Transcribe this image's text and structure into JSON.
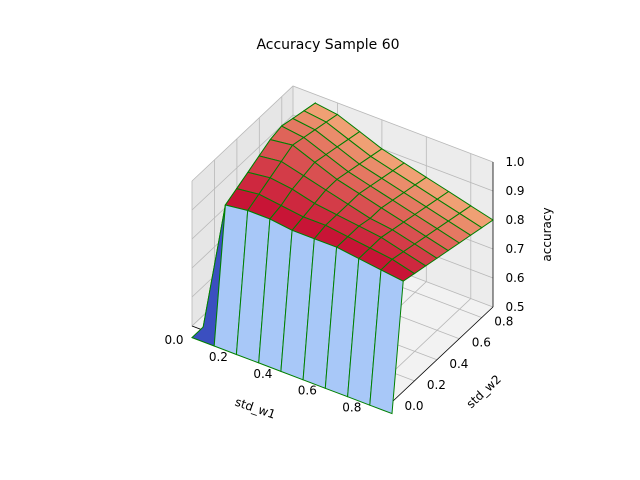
{
  "chart_data": {
    "type": "surface",
    "title": "Accuracy Sample 60",
    "xlabel": "std_w1",
    "ylabel": "std_w2",
    "zlabel": "accuracy",
    "x_ticks": [
      "0.0",
      "0.2",
      "0.4",
      "0.6",
      "0.8"
    ],
    "y_ticks": [
      "0.0",
      "0.2",
      "0.4",
      "0.6",
      "0.8"
    ],
    "z_ticks": [
      "0.5",
      "0.6",
      "0.7",
      "0.8",
      "0.9",
      "1.0"
    ],
    "xlim": [
      0.0,
      0.9
    ],
    "ylim": [
      0.0,
      0.9
    ],
    "zlim": [
      0.5,
      1.0
    ],
    "grid": true,
    "x": [
      0.0,
      0.1,
      0.2,
      0.3,
      0.4,
      0.5,
      0.6,
      0.7,
      0.8,
      0.9
    ],
    "y": [
      0.0,
      0.1,
      0.2,
      0.3,
      0.4,
      0.5,
      0.6,
      0.7,
      0.8,
      0.9
    ],
    "z_by_y_rows": [
      [
        0.1,
        0.1,
        0.1,
        0.1,
        0.1,
        0.1,
        0.1,
        0.1,
        0.1,
        0.1
      ],
      [
        0.1,
        0.91,
        0.92,
        0.92,
        0.91,
        0.91,
        0.91,
        0.9,
        0.89,
        0.88
      ],
      [
        0.1,
        0.93,
        0.94,
        0.93,
        0.92,
        0.92,
        0.91,
        0.9,
        0.89,
        0.87
      ],
      [
        0.1,
        0.95,
        0.96,
        0.95,
        0.93,
        0.92,
        0.91,
        0.9,
        0.88,
        0.86
      ],
      [
        0.1,
        0.97,
        0.98,
        0.96,
        0.94,
        0.92,
        0.9,
        0.89,
        0.87,
        0.85
      ],
      [
        0.1,
        0.99,
        1.0,
        0.97,
        0.94,
        0.92,
        0.9,
        0.88,
        0.86,
        0.84
      ],
      [
        0.1,
        1.0,
        0.99,
        0.96,
        0.93,
        0.91,
        0.89,
        0.87,
        0.85,
        0.83
      ],
      [
        0.1,
        0.99,
        0.98,
        0.95,
        0.92,
        0.9,
        0.88,
        0.86,
        0.84,
        0.82
      ],
      [
        0.1,
        0.98,
        0.97,
        0.94,
        0.91,
        0.89,
        0.87,
        0.85,
        0.83,
        0.81
      ],
      [
        0.1,
        0.97,
        0.96,
        0.93,
        0.9,
        0.88,
        0.86,
        0.84,
        0.82,
        0.8
      ]
    ],
    "colors": {
      "wall_front": "#a8c8f8",
      "floor_low": "#3b4fc0",
      "top_front": "#c81436",
      "top_back": "#f0a074",
      "edges": "#008000",
      "pane": "#f2f2f2",
      "grid": "#b8b8b8"
    }
  }
}
